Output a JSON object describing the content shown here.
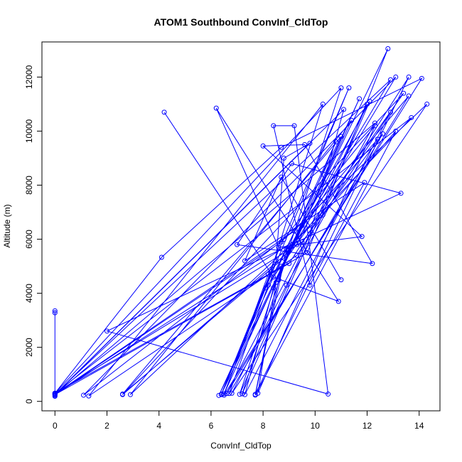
{
  "chart_data": {
    "type": "scatter",
    "title": "ATOM1 Southbound ConvInf_CldTop",
    "xlabel": "ConvInf_CldTop",
    "ylabel": "Altitude (m)",
    "xlim": [
      -0.5,
      14.8
    ],
    "ylim": [
      -350,
      13300
    ],
    "xticks": [
      0,
      2,
      4,
      6,
      8,
      10,
      12,
      14
    ],
    "yticks": [
      0,
      2000,
      4000,
      6000,
      8000,
      10000,
      12000
    ],
    "grid": false,
    "legend": "none",
    "color": "#0000ff",
    "series": [
      {
        "style": "line+points",
        "x": [
          0.0,
          4.1,
          8.7,
          14.1,
          6.5,
          8.2,
          11.3,
          6.4,
          8.5,
          8.8,
          9.8,
          0.0,
          9.3,
          11.7,
          6.5,
          8.1,
          13.4,
          2.6,
          9.3,
          12.0,
          7.1,
          8.7,
          13.1,
          1.1,
          8.8,
          14.3,
          6.8,
          8.9,
          12.3,
          0.0,
          9.0,
          13.6,
          7.7,
          8.6,
          11.0,
          0.0,
          9.7,
          12.8,
          6.4,
          8.3,
          10.3,
          1.3,
          9.3,
          12.9,
          7.3,
          8.4,
          11.4,
          2.9,
          10.3,
          13.1,
          7.7,
          8.9,
          13.7,
          0.0,
          9.5,
          12.6,
          6.7,
          8.2,
          11.0,
          2.6,
          8.8,
          12.1,
          7.2,
          9.0,
          12.9,
          0.0,
          9.2,
          13.6,
          6.6,
          9.8,
          11.1,
          0.0,
          8.7,
          12.3,
          7.8,
          8.5,
          10.8,
          6.3,
          9.5,
          12.4
        ],
        "y": [
          300,
          5330,
          9400,
          11950,
          230,
          4700,
          11600,
          250,
          5200,
          9000,
          9550,
          250,
          6000,
          11200,
          280,
          4200,
          11400,
          250,
          5800,
          11000,
          260,
          5000,
          12000,
          230,
          6000,
          11000,
          300,
          4300,
          10300,
          250,
          5100,
          12000,
          260,
          4500,
          11600,
          300,
          5500,
          13050,
          270,
          4800,
          11000,
          200,
          5400,
          10700,
          250,
          4200,
          10400,
          250,
          6900,
          10000,
          230,
          5600,
          10500,
          300,
          5900,
          9900,
          290,
          4300,
          9800,
          270,
          5300,
          11100,
          280,
          5600,
          11900,
          270,
          6300,
          11300,
          290,
          6200,
          10800,
          260,
          5900,
          10200,
          300,
          4400,
          9600,
          220,
          6500,
          9700
        ]
      },
      {
        "style": "line+points",
        "x": [
          4.2,
          8.4,
          10.9,
          6.2,
          8.6,
          11.8,
          8.0,
          9.6,
          12.2,
          7.0,
          9.1,
          13.3,
          2.0,
          10.5,
          9.2,
          8.4,
          9.8,
          11.9,
          7.3,
          8.7,
          11.0
        ],
        "y": [
          10700,
          4600,
          3700,
          10850,
          5700,
          6100,
          9450,
          9500,
          5100,
          5800,
          8800,
          7700,
          2600,
          270,
          10200,
          10200,
          4300,
          8100,
          5200,
          8300,
          4500
        ]
      },
      {
        "style": "line+points",
        "x": [
          0.0,
          0.0,
          0.0,
          0.0
        ],
        "y": [
          3350,
          3280,
          220,
          190
        ]
      }
    ]
  }
}
